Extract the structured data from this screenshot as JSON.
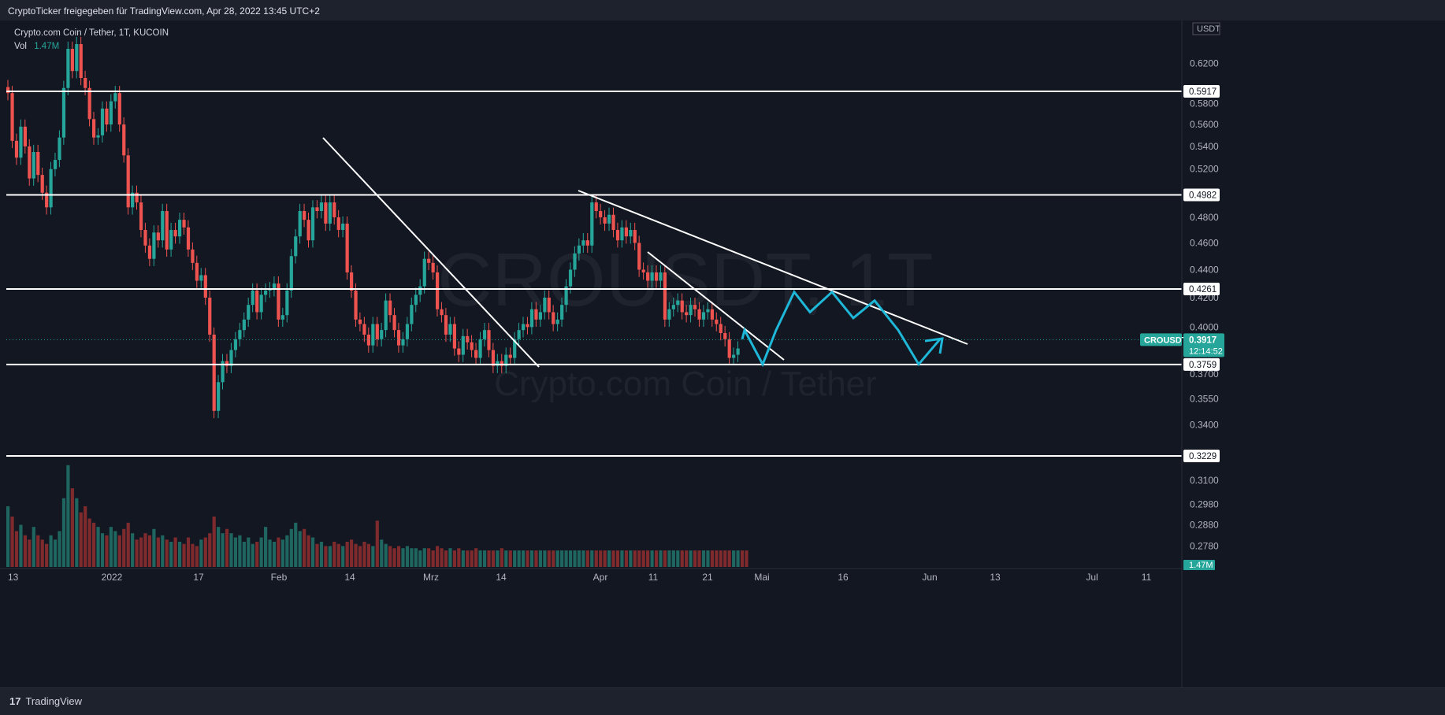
{
  "header": {
    "share_text": "CryptoTicker freigegeben für TradingView.com, Apr 28, 2022 13:45 UTC+2"
  },
  "legend": {
    "symbol_line": "Crypto.com Coin / Tether, 1T, KUCOIN",
    "vol_label": "Vol",
    "vol_value": "1.47M"
  },
  "watermark": {
    "ticker": "CROUSDT, 1T",
    "name": "Crypto.com Coin / Tether"
  },
  "footer": {
    "brand": "TradingView",
    "logo_glyph": "17"
  },
  "colors": {
    "up": "#26a69a",
    "down": "#ef5350",
    "up_vol": "#1e665f",
    "down_vol": "#7f2b2d",
    "projection": "#1eb7d8",
    "level_line": "#ffffff"
  },
  "chart_data": {
    "type": "candlestick",
    "symbol": "CROUSDT",
    "interval": "1T",
    "exchange": "KUCOIN",
    "currency": "USDT",
    "y_scale": "log",
    "y_ticks": [
      0.62,
      0.58,
      0.56,
      0.54,
      0.52,
      0.48,
      0.46,
      0.44,
      0.42,
      0.4,
      0.37,
      0.355,
      0.34,
      0.31,
      0.298,
      0.288,
      0.278
    ],
    "x_tick_labels": [
      "13",
      "2022",
      "17",
      "Feb",
      "14",
      "Mrz",
      "14",
      "Apr",
      "11",
      "21",
      "Mai",
      "16",
      "Jun",
      "13",
      "Jul",
      "11"
    ],
    "x_tick_positions": [
      10,
      142,
      252,
      354,
      444,
      547,
      636,
      762,
      829,
      898,
      967,
      1070,
      1180,
      1263,
      1386,
      1455
    ],
    "horizontal_levels": [
      {
        "label": "0.5917",
        "value": 0.5917
      },
      {
        "label": "0.4982",
        "value": 0.4982
      },
      {
        "label": "0.4261",
        "value": 0.4261
      },
      {
        "label": "0.3759",
        "value": 0.3759
      },
      {
        "label": "0.3229",
        "value": 0.3229
      }
    ],
    "current_price": {
      "ticker": "CROUSDT",
      "price": "0.3917",
      "value": 0.3917,
      "countdown": "12:14:52"
    },
    "volume_badge": "1.47M",
    "closes": [
      0.59,
      0.545,
      0.53,
      0.558,
      0.54,
      0.512,
      0.535,
      0.515,
      0.5,
      0.488,
      0.52,
      0.528,
      0.548,
      0.595,
      0.635,
      0.612,
      0.64,
      0.605,
      0.595,
      0.565,
      0.548,
      0.55,
      0.575,
      0.56,
      0.582,
      0.59,
      0.56,
      0.532,
      0.488,
      0.5,
      0.492,
      0.47,
      0.458,
      0.448,
      0.468,
      0.462,
      0.485,
      0.455,
      0.47,
      0.465,
      0.478,
      0.472,
      0.455,
      0.445,
      0.432,
      0.436,
      0.42,
      0.395,
      0.348,
      0.365,
      0.378,
      0.375,
      0.385,
      0.392,
      0.398,
      0.405,
      0.415,
      0.425,
      0.41,
      0.422,
      0.425,
      0.426,
      0.43,
      0.405,
      0.408,
      0.425,
      0.45,
      0.465,
      0.485,
      0.478,
      0.462,
      0.488,
      0.485,
      0.492,
      0.475,
      0.492,
      0.48,
      0.47,
      0.475,
      0.438,
      0.425,
      0.405,
      0.402,
      0.395,
      0.388,
      0.402,
      0.392,
      0.398,
      0.418,
      0.408,
      0.398,
      0.388,
      0.392,
      0.402,
      0.415,
      0.422,
      0.428,
      0.448,
      0.445,
      0.438,
      0.412,
      0.408,
      0.395,
      0.402,
      0.386,
      0.382,
      0.394,
      0.39,
      0.385,
      0.38,
      0.392,
      0.398,
      0.385,
      0.375,
      0.378,
      0.375,
      0.382,
      0.38,
      0.392,
      0.398,
      0.402,
      0.4,
      0.412,
      0.405,
      0.41,
      0.42,
      0.41,
      0.402,
      0.405,
      0.415,
      0.428,
      0.44,
      0.452,
      0.458,
      0.462,
      0.458,
      0.492,
      0.485,
      0.48,
      0.475,
      0.482,
      0.47,
      0.462,
      0.472,
      0.465,
      0.47,
      0.46,
      0.44,
      0.438,
      0.432,
      0.438,
      0.432,
      0.438,
      0.405,
      0.412,
      0.415,
      0.418,
      0.41,
      0.408,
      0.415,
      0.412,
      0.405,
      0.41,
      0.412,
      0.405,
      0.402,
      0.396,
      0.392,
      0.38,
      0.382,
      0.386
    ],
    "volumes": [
      0.297,
      0.292,
      0.285,
      0.288,
      0.283,
      0.281,
      0.287,
      0.283,
      0.281,
      0.279,
      0.283,
      0.281,
      0.285,
      0.301,
      0.318,
      0.306,
      0.301,
      0.294,
      0.297,
      0.291,
      0.289,
      0.287,
      0.284,
      0.283,
      0.287,
      0.285,
      0.283,
      0.286,
      0.289,
      0.284,
      0.281,
      0.282,
      0.284,
      0.283,
      0.286,
      0.282,
      0.283,
      0.281,
      0.28,
      0.282,
      0.28,
      0.279,
      0.282,
      0.279,
      0.278,
      0.281,
      0.282,
      0.284,
      0.292,
      0.287,
      0.284,
      0.286,
      0.284,
      0.282,
      0.283,
      0.28,
      0.282,
      0.279,
      0.28,
      0.282,
      0.287,
      0.281,
      0.28,
      0.282,
      0.281,
      0.283,
      0.286,
      0.289,
      0.285,
      0.286,
      0.283,
      0.282,
      0.279,
      0.28,
      0.278,
      0.278,
      0.28,
      0.279,
      0.278,
      0.28,
      0.281,
      0.279,
      0.278,
      0.28,
      0.279,
      0.278,
      0.29,
      0.281,
      0.279,
      0.278,
      0.277,
      0.278,
      0.277,
      0.278,
      0.277,
      0.277,
      0.276,
      0.277,
      0.277,
      0.276,
      0.278,
      0.277,
      0.276,
      0.277,
      0.276,
      0.277,
      0.276,
      0.276,
      0.276,
      0.277,
      0.276,
      0.276,
      0.276,
      0.276,
      0.276,
      0.277,
      0.276,
      0.276,
      0.276,
      0.276,
      0.276,
      0.276,
      0.276,
      0.276,
      0.276,
      0.276,
      0.276,
      0.276,
      0.276,
      0.276,
      0.276,
      0.276,
      0.276,
      0.276,
      0.276,
      0.276,
      0.276,
      0.276,
      0.276,
      0.276,
      0.276,
      0.276,
      0.276,
      0.276,
      0.276,
      0.276,
      0.276,
      0.276,
      0.276,
      0.276,
      0.276,
      0.276,
      0.276,
      0.276,
      0.276,
      0.276,
      0.276,
      0.276,
      0.276,
      0.276,
      0.276,
      0.276,
      0.276,
      0.276,
      0.276,
      0.276,
      0.276,
      0.276,
      0.276,
      0.276,
      0.276,
      0.276,
      0.276
    ],
    "trendlines": [
      {
        "from": [
          0.548,
          "Feb 10"
        ],
        "to": [
          0.377,
          "Mrz 21"
        ]
      },
      {
        "from": [
          0.495,
          "Mrz 28"
        ],
        "to": [
          0.389,
          "Jun 08"
        ]
      },
      {
        "from": [
          0.452,
          "Apr 10"
        ],
        "to": [
          0.38,
          "Mai 03"
        ]
      }
    ],
    "projection_path": [
      0.392,
      0.398,
      0.376,
      0.398,
      0.424,
      0.41,
      0.424,
      0.406,
      0.418,
      0.398,
      0.376,
      0.392
    ]
  }
}
